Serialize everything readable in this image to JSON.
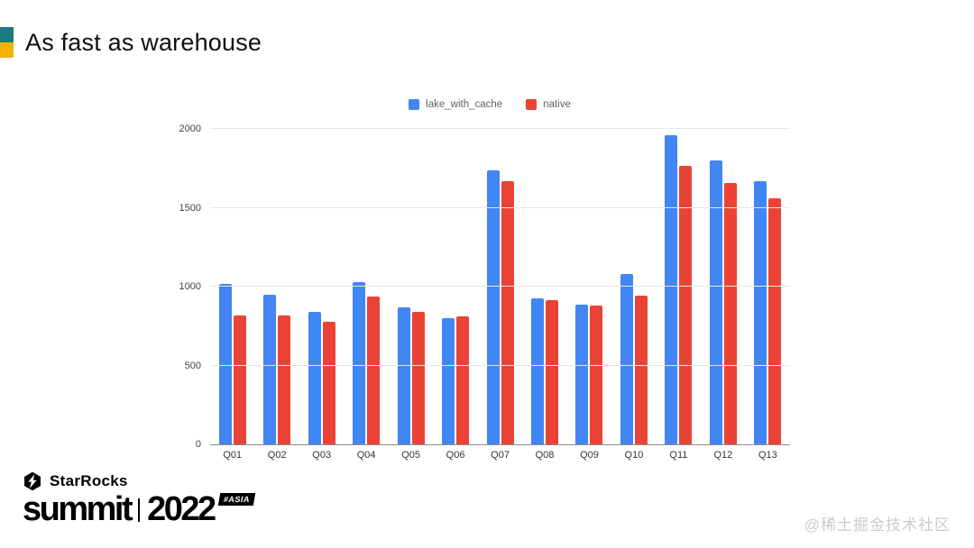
{
  "slide": {
    "title": "As fast as warehouse",
    "title_icon": {
      "top_color": "#1b7b80",
      "bottom_color": "#f2b200"
    }
  },
  "chart_data": {
    "type": "bar",
    "title": "",
    "categories": [
      "Q01",
      "Q02",
      "Q03",
      "Q04",
      "Q05",
      "Q06",
      "Q07",
      "Q08",
      "Q09",
      "Q10",
      "Q11",
      "Q12",
      "Q13"
    ],
    "series": [
      {
        "name": "lake_with_cache",
        "color": "#4285f4",
        "values": [
          1020,
          950,
          840,
          1030,
          870,
          800,
          1740,
          925,
          885,
          1080,
          1960,
          1800,
          1670
        ]
      },
      {
        "name": "native",
        "color": "#ea4335",
        "values": [
          820,
          820,
          775,
          940,
          840,
          810,
          1670,
          915,
          878,
          945,
          1765,
          1660,
          1560
        ]
      }
    ],
    "ylim": [
      0,
      2000
    ],
    "yticks": [
      0,
      500,
      1000,
      1500,
      2000
    ],
    "grid": true,
    "legend_position": "top",
    "axis_colors": {
      "gridline": "#e7e7e7",
      "baseline": "#8f8f8f",
      "tick_text": "#424242"
    }
  },
  "footer": {
    "brand": "StarRocks",
    "event": "summit",
    "year": "2022",
    "badge": "#ASIA"
  },
  "watermark": "@稀土掘金技术社区"
}
